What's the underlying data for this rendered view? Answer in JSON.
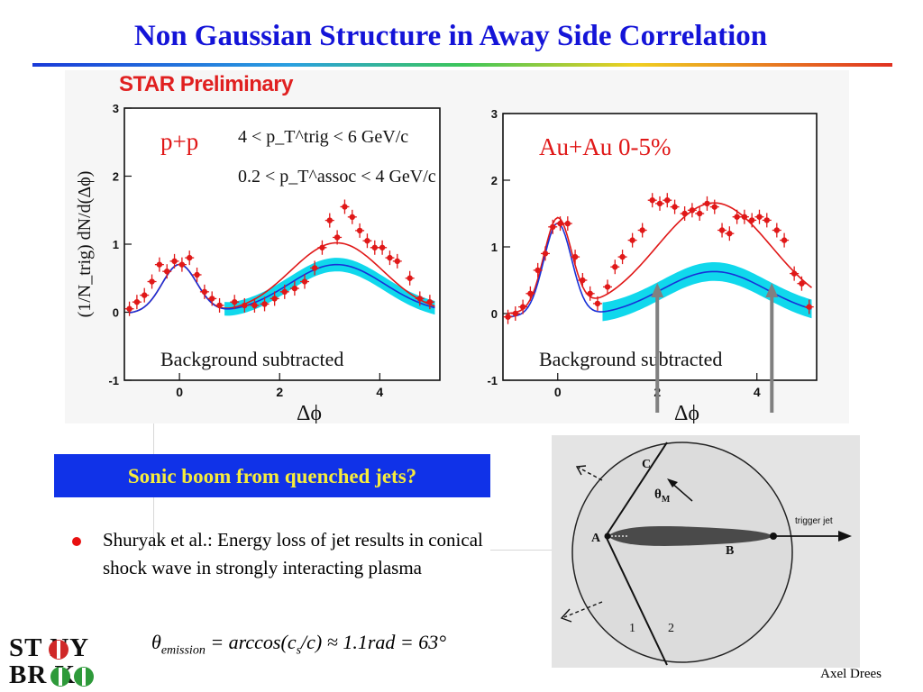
{
  "slide": {
    "title": "Non Gaussian Structure in Away Side Correlation",
    "callout": "Sonic boom from quenched jets?",
    "bullet": "Shuryak et al.: Energy loss of jet results in conical shock wave in strongly interacting plasma",
    "formula": "θemission = arccos(cs/c) ≈ 1.1rad = 63°",
    "formula_parts": {
      "theta": "θ",
      "sub": "emission",
      "mid": " = arccos(c",
      "sub2": "s",
      "end": "/c) ≈ 1.1rad = 63°"
    },
    "author": "Axel Drees",
    "logo_line1": "ST  NY",
    "logo_line2": "BR  K",
    "star_label": "STAR Preliminary",
    "bullet_color": "#e81010",
    "title_color": "#1414d8",
    "callout_bg": "#1032e8",
    "callout_fg": "#f6ec3c"
  },
  "chart_data": [
    {
      "type": "scatter",
      "panel_label": "p+p",
      "cut1": "4 < p_T^trig < 6 GeV/c",
      "cut2": "0.2 < p_T^assoc < 4 GeV/c",
      "note": "Background subtracted",
      "ylabel": "(1/N_trig) dN/d(Δϕ)",
      "xlabel": "Δϕ",
      "xlim": [
        -1.1,
        5.2
      ],
      "ylim": [
        -1,
        3
      ],
      "xticks": [
        "0",
        "2",
        "4"
      ],
      "yticks": [
        "-1",
        "0",
        "1",
        "2",
        "3"
      ],
      "points": [
        {
          "x": -1.0,
          "y": 0.05
        },
        {
          "x": -0.85,
          "y": 0.15
        },
        {
          "x": -0.7,
          "y": 0.25
        },
        {
          "x": -0.55,
          "y": 0.45
        },
        {
          "x": -0.4,
          "y": 0.7
        },
        {
          "x": -0.25,
          "y": 0.6
        },
        {
          "x": -0.1,
          "y": 0.75
        },
        {
          "x": 0.05,
          "y": 0.7
        },
        {
          "x": 0.2,
          "y": 0.8
        },
        {
          "x": 0.35,
          "y": 0.55
        },
        {
          "x": 0.5,
          "y": 0.3
        },
        {
          "x": 0.65,
          "y": 0.2
        },
        {
          "x": 0.8,
          "y": 0.1
        },
        {
          "x": 1.1,
          "y": 0.15
        },
        {
          "x": 1.3,
          "y": 0.1
        },
        {
          "x": 1.5,
          "y": 0.1
        },
        {
          "x": 1.7,
          "y": 0.12
        },
        {
          "x": 1.9,
          "y": 0.2
        },
        {
          "x": 2.1,
          "y": 0.3
        },
        {
          "x": 2.3,
          "y": 0.35
        },
        {
          "x": 2.5,
          "y": 0.45
        },
        {
          "x": 2.7,
          "y": 0.65
        },
        {
          "x": 2.85,
          "y": 0.95
        },
        {
          "x": 3.0,
          "y": 1.35
        },
        {
          "x": 3.15,
          "y": 1.1
        },
        {
          "x": 3.3,
          "y": 1.55
        },
        {
          "x": 3.45,
          "y": 1.4
        },
        {
          "x": 3.6,
          "y": 1.2
        },
        {
          "x": 3.75,
          "y": 1.05
        },
        {
          "x": 3.9,
          "y": 0.95
        },
        {
          "x": 4.05,
          "y": 0.95
        },
        {
          "x": 4.2,
          "y": 0.8
        },
        {
          "x": 4.35,
          "y": 0.75
        },
        {
          "x": 4.6,
          "y": 0.5
        },
        {
          "x": 4.8,
          "y": 0.2
        },
        {
          "x": 5.0,
          "y": 0.15
        }
      ],
      "red_fit": {
        "near_amp": 0.72,
        "near_w": 0.35,
        "away_amp": 1.04,
        "away_w": 0.92,
        "base": -0.02
      },
      "blue_fit": {
        "near_amp": 0.72,
        "near_w": 0.35,
        "away_amp": 0.72,
        "away_w": 0.95,
        "base": -0.02
      },
      "band_halfwidth": 0.1
    },
    {
      "type": "scatter",
      "panel_label": "Au+Au 0-5%",
      "note": "Background subtracted",
      "xlabel": "Δϕ",
      "xlim": [
        -1.1,
        5.2
      ],
      "ylim": [
        -1,
        3
      ],
      "xticks": [
        "0",
        "2",
        "4"
      ],
      "yticks": [
        "-1",
        "0",
        "1",
        "2",
        "3"
      ],
      "points": [
        {
          "x": -1.0,
          "y": -0.05
        },
        {
          "x": -0.85,
          "y": 0.0
        },
        {
          "x": -0.7,
          "y": 0.1
        },
        {
          "x": -0.55,
          "y": 0.3
        },
        {
          "x": -0.4,
          "y": 0.65
        },
        {
          "x": -0.25,
          "y": 0.9
        },
        {
          "x": -0.1,
          "y": 1.3
        },
        {
          "x": 0.05,
          "y": 1.35
        },
        {
          "x": 0.2,
          "y": 1.35
        },
        {
          "x": 0.35,
          "y": 0.85
        },
        {
          "x": 0.5,
          "y": 0.5
        },
        {
          "x": 0.65,
          "y": 0.3
        },
        {
          "x": 0.8,
          "y": 0.15
        },
        {
          "x": 1.0,
          "y": 0.4
        },
        {
          "x": 1.15,
          "y": 0.7
        },
        {
          "x": 1.3,
          "y": 0.85
        },
        {
          "x": 1.5,
          "y": 1.1
        },
        {
          "x": 1.7,
          "y": 1.25
        },
        {
          "x": 1.9,
          "y": 1.7
        },
        {
          "x": 2.05,
          "y": 1.65
        },
        {
          "x": 2.2,
          "y": 1.7
        },
        {
          "x": 2.35,
          "y": 1.6
        },
        {
          "x": 2.55,
          "y": 1.5
        },
        {
          "x": 2.7,
          "y": 1.55
        },
        {
          "x": 2.85,
          "y": 1.5
        },
        {
          "x": 3.0,
          "y": 1.65
        },
        {
          "x": 3.15,
          "y": 1.6
        },
        {
          "x": 3.3,
          "y": 1.25
        },
        {
          "x": 3.45,
          "y": 1.2
        },
        {
          "x": 3.6,
          "y": 1.45
        },
        {
          "x": 3.75,
          "y": 1.45
        },
        {
          "x": 3.9,
          "y": 1.4
        },
        {
          "x": 4.05,
          "y": 1.45
        },
        {
          "x": 4.2,
          "y": 1.4
        },
        {
          "x": 4.4,
          "y": 1.25
        },
        {
          "x": 4.55,
          "y": 1.1
        },
        {
          "x": 4.75,
          "y": 0.6
        },
        {
          "x": 4.9,
          "y": 0.45
        },
        {
          "x": 5.05,
          "y": 0.1
        }
      ],
      "red_fit": {
        "near_amp": 1.4,
        "near_w": 0.28,
        "away_amp": 1.66,
        "away_w": 1.15,
        "base": 0.0
      },
      "blue_fit": {
        "near_amp": 1.4,
        "near_w": 0.28,
        "away_amp": 0.68,
        "away_w": 1.05,
        "base": -0.05
      },
      "band_halfwidth": 0.14
    }
  ],
  "diagram": {
    "label_A": "A",
    "label_B": "B",
    "label_C": "C",
    "label_theta": "θ",
    "label_theta_sub": "M",
    "label_1": "1",
    "label_2": "2",
    "label_trigger": "trigger jet"
  }
}
